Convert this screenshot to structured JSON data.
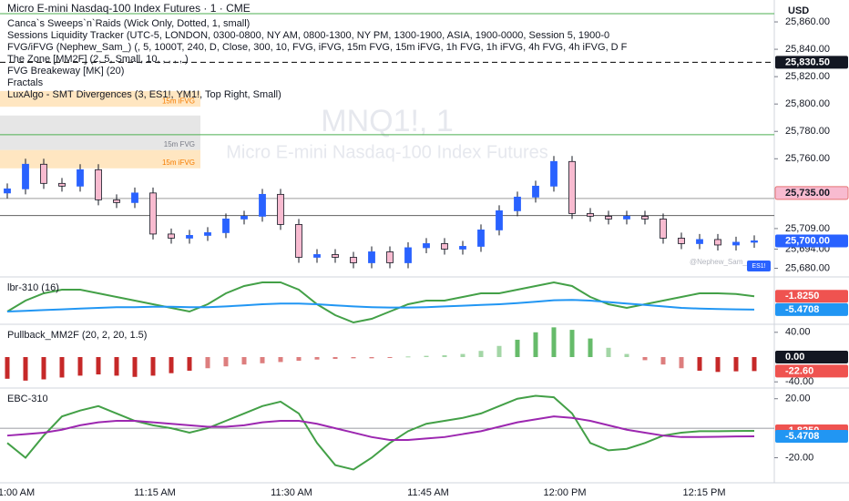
{
  "chart_data": [
    {
      "type": "candlestick",
      "title": "Micro E-mini Nasdaq-100 Index Futures · 1 · CME",
      "currency": "USD",
      "legend": [
        "Canca`s Sweeps`n`Raids (Wick Only, Dotted, 1, small)",
        "Sessions Liquidity Tracker (UTC-5, LONDON, 0300-0800, NY AM, 0800-1300, NY PM, 1300-1900, ASIA, 1900-0000, Session 5, 1900-0",
        "FVG/iFVG (Nephew_Sam_) (, 5, 1000T, 240, D, Close, 300, 10, FVG, iFVG, 15m FVG, 15m iFVG, 1h FVG, 1h iFVG, 4h FVG, 4h iFVG, D F",
        "The Zone [MM2F] (2, 5, Small, 10, , , , , )",
        "FVG Breakeway [MK] (20)",
        "Fractals",
        "LuxAlgo - SMT Divergences (3, ES1!, YM1!, Top Right, Small)"
      ],
      "watermark": [
        "MNQ1!, 1",
        "Micro E-mini Nasdaq-100 Index Futures"
      ],
      "annotations": [
        "ES1!",
        "@Nephew_Sam_"
      ],
      "up_color": "#2962ff",
      "down_color": "#f8bbd0",
      "candles": [
        [
          25735,
          25742,
          25731,
          25738
        ],
        [
          25738,
          25760,
          25734,
          25756
        ],
        [
          25756,
          25760,
          25738,
          25742
        ],
        [
          25742,
          25746,
          25736,
          25740
        ],
        [
          25740,
          25756,
          25736,
          25752
        ],
        [
          25752,
          25756,
          25726,
          25730
        ],
        [
          25730,
          25734,
          25724,
          25728
        ],
        [
          25728,
          25739,
          25724,
          25735
        ],
        [
          25735,
          25739,
          25701,
          25705
        ],
        [
          25705,
          25709,
          25698,
          25702
        ],
        [
          25702,
          25708,
          25698,
          25704
        ],
        [
          25704,
          25710,
          25700,
          25706
        ],
        [
          25706,
          25720,
          25702,
          25716
        ],
        [
          25716,
          25722,
          25712,
          25718
        ],
        [
          25718,
          25738,
          25714,
          25734
        ],
        [
          25734,
          25738,
          25708,
          25712
        ],
        [
          25712,
          25716,
          25684,
          25688
        ],
        [
          25688,
          25694,
          25684,
          25690
        ],
        [
          25690,
          25694,
          25684,
          25688
        ],
        [
          25688,
          25692,
          25680,
          25684
        ],
        [
          25684,
          25696,
          25680,
          25692
        ],
        [
          25692,
          25696,
          25680,
          25684
        ],
        [
          25684,
          25699,
          25680,
          25695
        ],
        [
          25695,
          25702,
          25691,
          25698
        ],
        [
          25698,
          25702,
          25690,
          25694
        ],
        [
          25694,
          25700,
          25690,
          25696
        ],
        [
          25696,
          25712,
          25692,
          25708
        ],
        [
          25708,
          25726,
          25704,
          25722
        ],
        [
          25722,
          25736,
          25718,
          25732
        ],
        [
          25732,
          25744,
          25728,
          25740
        ],
        [
          25740,
          25762,
          25736,
          25758
        ],
        [
          25758,
          25762,
          25716,
          25720
        ],
        [
          25720,
          25724,
          25714,
          25718
        ],
        [
          25718,
          25722,
          25712,
          25716
        ],
        [
          25716,
          25722,
          25712,
          25718
        ],
        [
          25718,
          25722,
          25712,
          25716
        ],
        [
          25716,
          25720,
          25698,
          25702
        ],
        [
          25702,
          25706,
          25694,
          25698
        ],
        [
          25698,
          25705,
          25694,
          25701
        ],
        [
          25701,
          25705,
          25693,
          25697
        ],
        [
          25697,
          25703,
          25693,
          25699
        ],
        [
          25699,
          25704,
          25695,
          25700
        ]
      ],
      "zones": [
        {
          "label": "15m iFVG",
          "top": 25809.5,
          "bottom": 25798,
          "color": "#ffe0b2"
        },
        {
          "label": "15m FVG",
          "top": 25791.6,
          "bottom": 25766.4,
          "color": "#e0e0e0"
        },
        {
          "label": "15m iFVG",
          "top": 25766.4,
          "bottom": 25753,
          "color": "#ffe0b2"
        }
      ],
      "lines": [
        {
          "value": 25866,
          "color": "#4caf50"
        },
        {
          "value": 25777.6,
          "color": "#4caf50"
        },
        {
          "value": 25830.5,
          "color": "#000000",
          "dashed": true
        },
        {
          "value": 25731,
          "color": "#9e9e9e"
        },
        {
          "value": 25718.5,
          "color": "#616161"
        }
      ],
      "ylim": [
        25675,
        25876
      ],
      "yticks": [
        {
          "value": 25860,
          "label": "25,860.00"
        },
        {
          "value": 25840,
          "label": "25,840.00"
        },
        {
          "value": 25820,
          "label": "25,820.00"
        },
        {
          "value": 25800,
          "label": "25,800.00"
        },
        {
          "value": 25780,
          "label": "25,780.00"
        },
        {
          "value": 25760,
          "label": "25,760.00"
        },
        {
          "value": 25709,
          "label": "25,709.00"
        },
        {
          "value": 25694,
          "label": "25,694.00"
        },
        {
          "value": 25680,
          "label": "25,680.00"
        }
      ],
      "badges": [
        {
          "value": 25830.5,
          "label": "25,830.50",
          "color": "#131722"
        },
        {
          "value": 25735,
          "label": "25,735.00",
          "color": "#f8bbd0"
        },
        {
          "value": 25700,
          "label": "25,700.00",
          "color": "#2962ff"
        }
      ],
      "x_labels": [
        "1:00 AM",
        "11:15 AM",
        "11:30 AM",
        "11:45 AM",
        "12:00 PM",
        "12:15 PM"
      ]
    },
    {
      "type": "line",
      "title": "lbr-310 (16)",
      "series": [
        {
          "color": "#43a047",
          "values": [
            -6,
            -3,
            -1,
            0,
            0,
            -1,
            -2,
            -3,
            -4,
            -5,
            -6,
            -4,
            -1,
            1,
            2,
            2,
            0,
            -4,
            -7,
            -9,
            -8,
            -6,
            -4,
            -3,
            -3,
            -2,
            -1,
            -1,
            0,
            1,
            2,
            1,
            -2,
            -4,
            -5,
            -4,
            -3,
            -2,
            -1,
            -1,
            -1.2,
            -1.825
          ]
        },
        {
          "color": "#2196f3",
          "values": [
            -6,
            -5.8,
            -5.6,
            -5.4,
            -5.2,
            -5,
            -4.8,
            -4.8,
            -4.7,
            -4.7,
            -4.8,
            -4.8,
            -4.6,
            -4.3,
            -4,
            -3.8,
            -3.8,
            -4,
            -4.3,
            -4.6,
            -4.8,
            -4.9,
            -4.9,
            -4.8,
            -4.6,
            -4.4,
            -4.2,
            -4,
            -3.7,
            -3.3,
            -2.9,
            -2.8,
            -3,
            -3.4,
            -3.8,
            -4.2,
            -4.6,
            -5,
            -5.2,
            -5.3,
            -5.4,
            -5.4708
          ]
        }
      ],
      "ylim": [
        -9.5,
        3
      ],
      "badges": [
        {
          "value": -1.825,
          "label": "-1.8250",
          "color": "#ef5350"
        },
        {
          "value": -5.4708,
          "label": "-5.4708",
          "color": "#2196f3"
        }
      ]
    },
    {
      "type": "histogram",
      "title": "Pullback_MM2F (20, 2, 20, 1.5)",
      "pos_color": "#66bb6a",
      "neg_color": "#c62828",
      "values": [
        -35,
        -38,
        -36,
        -33,
        -30,
        -28,
        -30,
        -32,
        -30,
        -26,
        -22,
        -18,
        -15,
        -12,
        -10,
        -8,
        -6,
        -4,
        -3,
        -2,
        -2,
        -1,
        1,
        2,
        3,
        5,
        10,
        18,
        28,
        40,
        48,
        44,
        30,
        15,
        5,
        -5,
        -12,
        -18,
        -22,
        -24,
        -23,
        -22.6
      ],
      "ylim": [
        -50,
        50
      ],
      "yticks": [
        {
          "value": 40,
          "label": "40.00"
        },
        {
          "value": -40,
          "label": "-40.00"
        }
      ],
      "badges": [
        {
          "value": 0,
          "label": "0.00",
          "color": "#131722"
        },
        {
          "value": -22.6,
          "label": "-22.60",
          "color": "#ef5350"
        }
      ]
    },
    {
      "type": "line",
      "title": "EBC-310",
      "series": [
        {
          "color": "#43a047",
          "values": [
            -10,
            -20,
            -5,
            8,
            12,
            15,
            10,
            5,
            2,
            0,
            -3,
            0,
            5,
            10,
            15,
            18,
            10,
            -10,
            -25,
            -28,
            -20,
            -10,
            -2,
            3,
            5,
            7,
            10,
            15,
            20,
            22,
            21,
            10,
            -10,
            -15,
            -14,
            -10,
            -5,
            -3,
            -2,
            -2,
            -1.9,
            -1.825
          ]
        },
        {
          "color": "#9c27b0",
          "values": [
            -5,
            -4,
            -3,
            -1,
            2,
            4,
            5,
            5,
            4,
            3,
            2,
            1,
            1,
            2,
            4,
            5,
            5,
            3,
            0,
            -3,
            -6,
            -8,
            -8,
            -7,
            -6,
            -4,
            -2,
            1,
            4,
            6,
            8,
            7,
            5,
            2,
            -1,
            -3,
            -5,
            -6,
            -6,
            -5.8,
            -5.6,
            -5.4708
          ]
        }
      ],
      "ylim": [
        -37,
        26
      ],
      "yticks": [
        {
          "value": 20,
          "label": "20.00"
        },
        {
          "value": -20,
          "label": "-20.00"
        }
      ],
      "badges": [
        {
          "value": -1.825,
          "label": "-1.8250",
          "color": "#ef5350"
        },
        {
          "value": -5.4708,
          "label": "-5.4708",
          "color": "#2196f3"
        }
      ]
    }
  ]
}
